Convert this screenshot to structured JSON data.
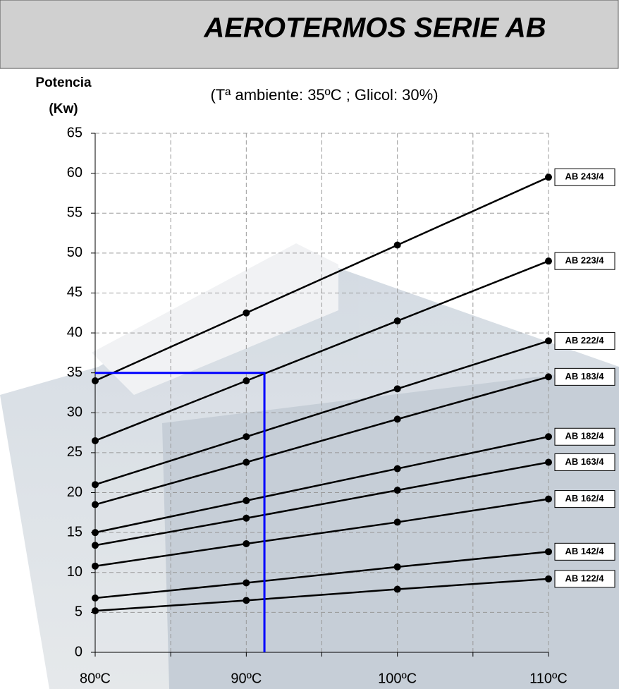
{
  "chart_data": {
    "type": "line",
    "title": "AEROTERMOS SERIE AB",
    "subtitle": "(Tª ambiente: 35ºC  ;  Glicol: 30%)",
    "y_label": [
      "Potencia",
      "(Kw)"
    ],
    "x": [
      80,
      90,
      100,
      110
    ],
    "xlim": [
      80,
      110
    ],
    "xticks": [
      {
        "value": 80,
        "label": "80ºC"
      },
      {
        "value": 90,
        "label": "90ºC"
      },
      {
        "value": 100,
        "label": "100ºC"
      },
      {
        "value": 110,
        "label": "110ºC"
      }
    ],
    "x_minor_ticks": [
      85,
      95,
      105
    ],
    "ylim": [
      0,
      65
    ],
    "yticks": [
      0,
      5,
      10,
      15,
      20,
      25,
      30,
      35,
      40,
      45,
      50,
      55,
      60,
      65
    ],
    "grid": true,
    "series": [
      {
        "name": "AB 243/4",
        "color": "#000000",
        "values": [
          34,
          42.5,
          51,
          59.5
        ]
      },
      {
        "name": "AB 223/4",
        "color": "#000000",
        "values": [
          26.5,
          34,
          41.5,
          49
        ]
      },
      {
        "name": "AB 222/4",
        "color": "#000000",
        "values": [
          21,
          27,
          33,
          39
        ]
      },
      {
        "name": "AB 183/4",
        "color": "#000000",
        "values": [
          18.5,
          23.8,
          29.2,
          34.5
        ]
      },
      {
        "name": "AB 182/4",
        "color": "#000000",
        "values": [
          15,
          19,
          23,
          27
        ]
      },
      {
        "name": "AB 163/4",
        "color": "#000000",
        "values": [
          13.4,
          16.8,
          20.3,
          23.8
        ]
      },
      {
        "name": "AB 162/4",
        "color": "#000000",
        "values": [
          10.8,
          13.6,
          16.3,
          19.2
        ]
      },
      {
        "name": "AB 142/4",
        "color": "#000000",
        "values": [
          6.8,
          8.7,
          10.7,
          12.6
        ]
      },
      {
        "name": "AB 122/4",
        "color": "#000000",
        "values": [
          5.2,
          6.5,
          7.9,
          9.2
        ]
      }
    ],
    "reference": {
      "x": 91.2,
      "y": 35,
      "color": "#0000ff"
    }
  }
}
